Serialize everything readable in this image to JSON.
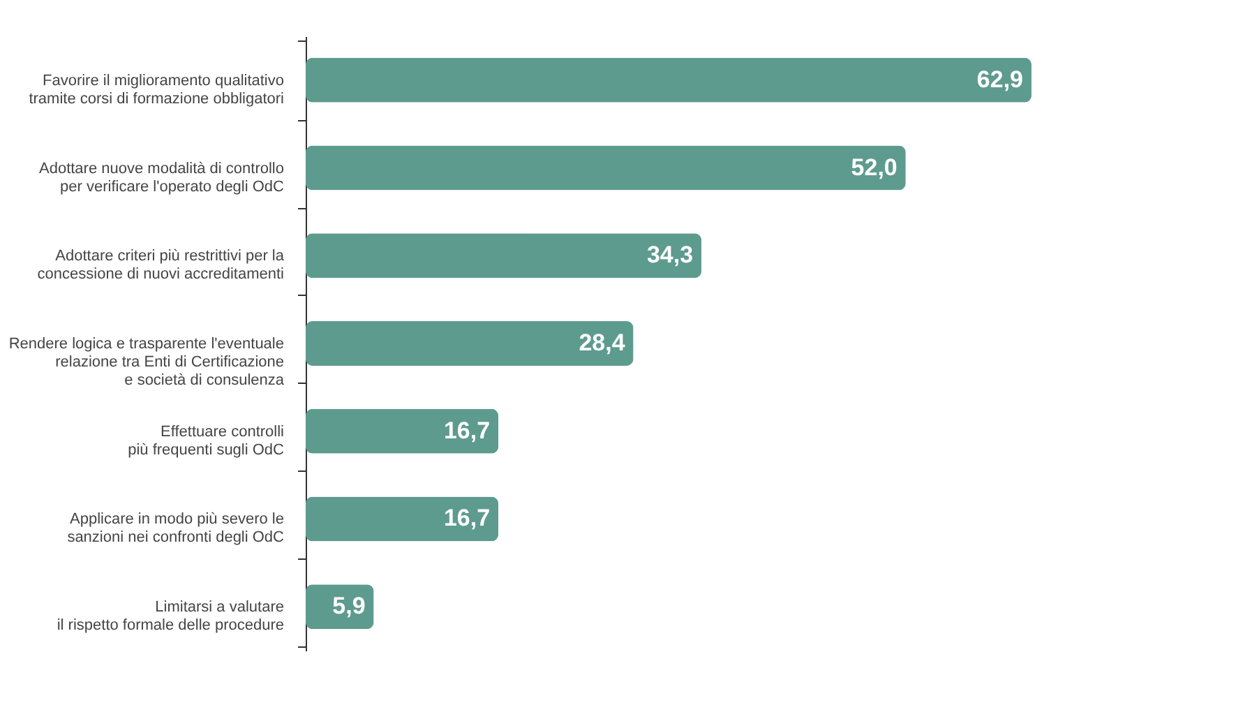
{
  "chart_data": {
    "type": "bar",
    "orientation": "horizontal",
    "categories": [
      "Favorire il miglioramento qualitativo\ntramite corsi di formazione obbligatori",
      "Adottare nuove modalità di controllo\nper verificare l'operato degli OdC",
      "Adottare criteri più restrittivi per la\nconcessione di nuovi accreditamenti",
      "Rendere logica e trasparente l'eventuale\nrelazione tra Enti di Certificazione\ne società di consulenza",
      "Effettuare controlli\npiù frequenti sugli OdC",
      "Applicare in modo più severo le\nsanzioni nei confronti degli OdC",
      "Limitarsi a valutare\nil rispetto formale delle procedure"
    ],
    "values": [
      62.9,
      52.0,
      34.3,
      28.4,
      16.7,
      16.7,
      5.9
    ],
    "value_labels": [
      "62,9",
      "52,0",
      "34,3",
      "28,4",
      "16,7",
      "16,7",
      "5,9"
    ],
    "color": "#5e9b8f",
    "grid": false,
    "tick_labels": "y"
  }
}
